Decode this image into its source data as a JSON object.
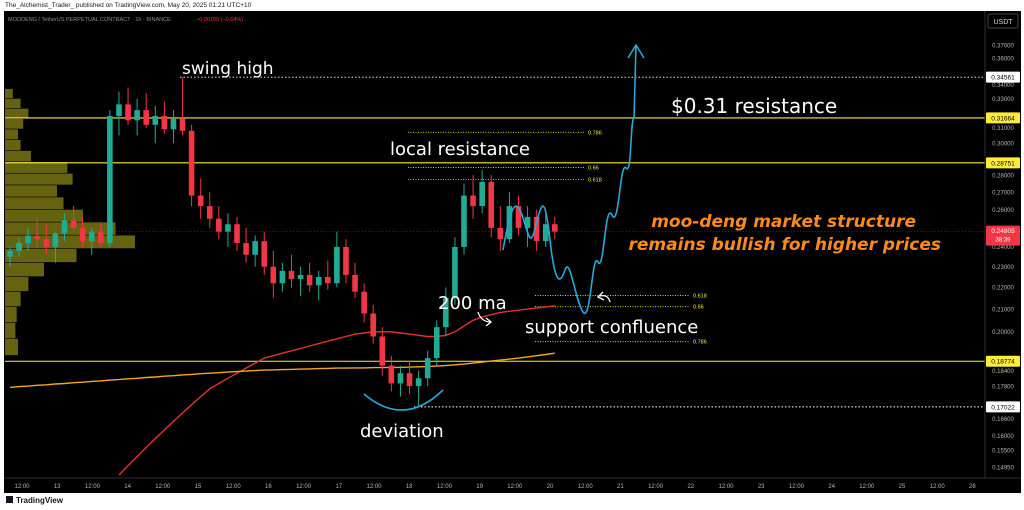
{
  "header": {
    "attribution": "The_Alchemist_Trader_ published on TradingView.com, May 20, 2025 01:21 UTC+10",
    "symbol": "MOODENG / TetherUS PERPETUAL CONTRACT · 1h · BINANCE",
    "change": "−0.00159 (−0.64%)",
    "currency": "USDT",
    "footer": "TradingView"
  },
  "chart_data": {
    "type": "candlestick",
    "log_scale": true,
    "grid": false,
    "x_labels": [
      "12:00",
      "13",
      "12:00",
      "14",
      "12:00",
      "15",
      "12:00",
      "16",
      "12:00",
      "17",
      "12:00",
      "18",
      "12:00",
      "19",
      "12:00",
      "20",
      "12:00",
      "21",
      "12:00",
      "22",
      "12:00",
      "23",
      "12:00",
      "24",
      "12:00",
      "25",
      "12:00",
      "26"
    ],
    "ylim": [
      0.1461,
      0.3984
    ],
    "yticks": [
      {
        "value": 0.37,
        "label": "0.37000"
      },
      {
        "value": 0.36,
        "label": "0.36000"
      },
      {
        "value": 0.34,
        "label": "0.34000"
      },
      {
        "value": 0.33,
        "label": "0.33000"
      },
      {
        "value": 0.31,
        "label": "0.31000"
      },
      {
        "value": 0.3,
        "label": "0.30000"
      },
      {
        "value": 0.28,
        "label": "0.28000"
      },
      {
        "value": 0.27,
        "label": "0.27000"
      },
      {
        "value": 0.26,
        "label": "0.26000"
      },
      {
        "value": 0.24,
        "label": "0.24000"
      },
      {
        "value": 0.23,
        "label": "0.23000"
      },
      {
        "value": 0.22,
        "label": "0.22000"
      },
      {
        "value": 0.21,
        "label": "0.21000"
      },
      {
        "value": 0.2,
        "label": "0.20000"
      },
      {
        "value": 0.184,
        "label": "0.18400"
      },
      {
        "value": 0.178,
        "label": "0.17800"
      },
      {
        "value": 0.166,
        "label": "0.16600"
      },
      {
        "value": 0.16,
        "label": "0.16000"
      },
      {
        "value": 0.155,
        "label": "0.15500"
      },
      {
        "value": 0.1495,
        "label": "0.14950"
      }
    ],
    "open": [
      0.235,
      0.238,
      0.242,
      0.246,
      0.244,
      0.24,
      0.247,
      0.254,
      0.25,
      0.243,
      0.248,
      0.242,
      0.318,
      0.326,
      0.315,
      0.322,
      0.312,
      0.318,
      0.309,
      0.316,
      0.308,
      0.268,
      0.262,
      0.255,
      0.248,
      0.252,
      0.242,
      0.236,
      0.243,
      0.23,
      0.222,
      0.228,
      0.224,
      0.226,
      0.221,
      0.225,
      0.222,
      0.24,
      0.226,
      0.218,
      0.208,
      0.198,
      0.186,
      0.179,
      0.183,
      0.178,
      0.181,
      0.189,
      0.202,
      0.215,
      0.24,
      0.268,
      0.262,
      0.276,
      0.25,
      0.244,
      0.262,
      0.25,
      0.256,
      0.243,
      0.252
    ],
    "high": [
      0.24,
      0.245,
      0.25,
      0.255,
      0.252,
      0.248,
      0.258,
      0.262,
      0.256,
      0.25,
      0.253,
      0.322,
      0.335,
      0.338,
      0.33,
      0.334,
      0.325,
      0.328,
      0.322,
      0.3456,
      0.312,
      0.278,
      0.27,
      0.262,
      0.258,
      0.256,
      0.25,
      0.246,
      0.248,
      0.238,
      0.232,
      0.236,
      0.23,
      0.232,
      0.228,
      0.233,
      0.248,
      0.244,
      0.232,
      0.222,
      0.212,
      0.202,
      0.19,
      0.186,
      0.188,
      0.184,
      0.192,
      0.205,
      0.22,
      0.245,
      0.275,
      0.28,
      0.283,
      0.28,
      0.262,
      0.27,
      0.268,
      0.262,
      0.26,
      0.258,
      0.256
    ],
    "low": [
      0.23,
      0.235,
      0.238,
      0.24,
      0.236,
      0.232,
      0.243,
      0.248,
      0.24,
      0.236,
      0.24,
      0.24,
      0.305,
      0.312,
      0.305,
      0.31,
      0.3,
      0.306,
      0.3,
      0.305,
      0.262,
      0.255,
      0.25,
      0.244,
      0.24,
      0.238,
      0.232,
      0.23,
      0.226,
      0.215,
      0.218,
      0.22,
      0.216,
      0.218,
      0.214,
      0.219,
      0.22,
      0.222,
      0.215,
      0.204,
      0.195,
      0.182,
      0.176,
      0.174,
      0.175,
      0.17022,
      0.178,
      0.186,
      0.198,
      0.212,
      0.236,
      0.255,
      0.258,
      0.245,
      0.238,
      0.242,
      0.246,
      0.24,
      0.238,
      0.24,
      0.244
    ],
    "close": [
      0.238,
      0.242,
      0.246,
      0.244,
      0.24,
      0.247,
      0.254,
      0.25,
      0.243,
      0.248,
      0.242,
      0.318,
      0.326,
      0.315,
      0.322,
      0.312,
      0.318,
      0.309,
      0.316,
      0.308,
      0.268,
      0.262,
      0.255,
      0.248,
      0.252,
      0.242,
      0.236,
      0.243,
      0.23,
      0.222,
      0.228,
      0.224,
      0.226,
      0.221,
      0.225,
      0.222,
      0.24,
      0.226,
      0.218,
      0.208,
      0.198,
      0.186,
      0.179,
      0.183,
      0.178,
      0.181,
      0.189,
      0.202,
      0.215,
      0.24,
      0.268,
      0.262,
      0.276,
      0.25,
      0.244,
      0.262,
      0.25,
      0.256,
      0.243,
      0.252,
      0.24805
    ],
    "up_color": "#22ab94",
    "down_color": "#f23645",
    "moving_averages": [
      {
        "name": "200 ma",
        "color": "#e0342c",
        "values": [
          null,
          null,
          null,
          null,
          null,
          null,
          null,
          null,
          null,
          null,
          null,
          null,
          0.147,
          0.15,
          0.153,
          0.156,
          0.159,
          0.162,
          0.165,
          0.168,
          0.171,
          0.174,
          0.177,
          0.179,
          0.181,
          0.183,
          0.185,
          0.187,
          0.189,
          0.19,
          0.191,
          0.192,
          0.193,
          0.194,
          0.195,
          0.196,
          0.197,
          0.198,
          0.199,
          0.1995,
          0.2,
          0.2,
          0.2,
          0.1995,
          0.199,
          0.1985,
          0.198,
          0.198,
          0.1985,
          0.2,
          0.2025,
          0.205,
          0.2065,
          0.2075,
          0.2085,
          0.209,
          0.2095,
          0.21,
          0.2105,
          0.211,
          0.2115
        ]
      },
      {
        "color": "#f5a623",
        "values": [
          0.1775,
          0.1778,
          0.178,
          0.1783,
          0.1785,
          0.1788,
          0.179,
          0.1793,
          0.1795,
          0.1798,
          0.18,
          0.1803,
          0.1805,
          0.1808,
          0.181,
          0.1813,
          0.1815,
          0.1818,
          0.182,
          0.1823,
          0.1825,
          0.1828,
          0.183,
          0.1832,
          0.1834,
          0.1836,
          0.1838,
          0.184,
          0.1842,
          0.1843,
          0.1844,
          0.1845,
          0.1846,
          0.1847,
          0.1848,
          0.1849,
          0.185,
          0.185,
          0.1851,
          0.1851,
          0.1852,
          0.1852,
          0.1853,
          0.1853,
          0.1854,
          0.1855,
          0.1856,
          0.1858,
          0.186,
          0.1863,
          0.1866,
          0.187,
          0.1874,
          0.1878,
          0.1882,
          0.1886,
          0.189,
          0.1895,
          0.19,
          0.1905,
          0.191
        ]
      }
    ],
    "levels": [
      {
        "value": 0.34561,
        "color": "#ffffff",
        "style": "dotted"
      },
      {
        "value": 0.31664,
        "color": "#ffeb3b",
        "style": "solid"
      },
      {
        "value": 0.28751,
        "color": "#ffeb3b",
        "style": "solid"
      },
      {
        "value": 0.18774,
        "color": "#ffeb3b",
        "style": "solid"
      },
      {
        "value": 0.17022,
        "color": "#ffffff",
        "style": "dotted"
      }
    ],
    "last_price": {
      "value": 0.24805,
      "countdown": "38:39",
      "color": "#f23645"
    },
    "fib_color": "#ffeb3b",
    "fib_retracements": [
      {
        "levels": [
          {
            "ratio": 0.786,
            "price": 0.307
          },
          {
            "ratio": 0.66,
            "price": 0.2847
          },
          {
            "ratio": 0.618,
            "price": 0.2775
          }
        ]
      },
      {
        "levels": [
          {
            "ratio": 0.618,
            "price": 0.2162
          },
          {
            "ratio": 0.66,
            "price": 0.2111
          },
          {
            "ratio": 0.786,
            "price": 0.1958
          }
        ]
      }
    ],
    "volume_profile": {
      "color": "#b9b41e",
      "bins": [
        0.19,
        0.197,
        0.204,
        0.211,
        0.218,
        0.225,
        0.232,
        0.239,
        0.246,
        0.253,
        0.26,
        0.267,
        0.274,
        0.281,
        0.288,
        0.295,
        0.302,
        0.309,
        0.316,
        0.323,
        0.33,
        0.337
      ],
      "volumes": [
        10,
        8,
        9,
        12,
        18,
        30,
        55,
        100,
        85,
        60,
        45,
        40,
        52,
        48,
        20,
        12,
        10,
        14,
        18,
        12,
        6
      ]
    },
    "annotations": [
      {
        "text": "swing high",
        "color": "#ffffff"
      },
      {
        "text": "local resistance",
        "color": "#ffffff"
      },
      {
        "text": "$0.31 resistance",
        "color": "#ffffff"
      },
      {
        "text": "moo-deng market structure",
        "color": "#ff8a1c"
      },
      {
        "text": "remains bullish for higher prices",
        "color": "#ff8a1c"
      },
      {
        "text": "200 ma",
        "color": "#ffffff"
      },
      {
        "text": "support confluence",
        "color": "#ffffff"
      },
      {
        "text": "deviation",
        "color": "#ffffff"
      }
    ]
  }
}
